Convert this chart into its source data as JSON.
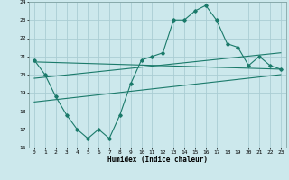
{
  "xlabel": "Humidex (Indice chaleur)",
  "background_color": "#cce8ec",
  "grid_color": "#aacdd4",
  "line_color": "#1a7a6a",
  "ylim": [
    16,
    24
  ],
  "xlim": [
    -0.5,
    23.5
  ],
  "yticks": [
    16,
    17,
    18,
    19,
    20,
    21,
    22,
    23,
    24
  ],
  "xticks": [
    0,
    1,
    2,
    3,
    4,
    5,
    6,
    7,
    8,
    9,
    10,
    11,
    12,
    13,
    14,
    15,
    16,
    17,
    18,
    19,
    20,
    21,
    22,
    23
  ],
  "series1_x": [
    0,
    1,
    2,
    3,
    4,
    5,
    6,
    7,
    8,
    9,
    10,
    11,
    12,
    13,
    14,
    15,
    16,
    17,
    18,
    19,
    20,
    21,
    22,
    23
  ],
  "series1_y": [
    20.8,
    20.0,
    18.8,
    17.8,
    17.0,
    16.5,
    17.0,
    16.5,
    17.8,
    19.5,
    20.8,
    21.0,
    21.2,
    23.0,
    23.0,
    23.5,
    23.8,
    23.0,
    21.7,
    21.5,
    20.5,
    21.0,
    20.5,
    20.3
  ],
  "trend1_x": [
    0,
    23
  ],
  "trend1_y": [
    18.5,
    20.0
  ],
  "trend2_x": [
    0,
    23
  ],
  "trend2_y": [
    19.8,
    21.2
  ],
  "trend3_x": [
    0,
    23
  ],
  "trend3_y": [
    20.7,
    20.3
  ]
}
